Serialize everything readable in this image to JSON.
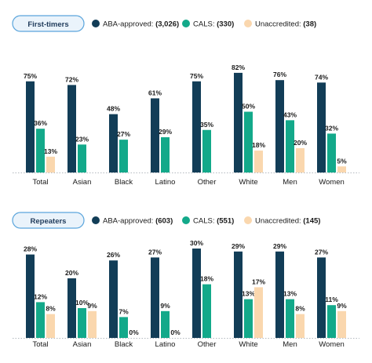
{
  "colors": {
    "aba": "#123d57",
    "cals": "#13a98a",
    "unaccredited": "#fad7ae",
    "pill_border": "#5aa5dc",
    "pill_fill": "#eaf3fb"
  },
  "chart_data": [
    {
      "type": "bar",
      "panel_label": "First-timers",
      "categories": [
        "Total",
        "Asian",
        "Black",
        "Latino",
        "Other",
        "White",
        "Men",
        "Women"
      ],
      "ylim": [
        0,
        100
      ],
      "legend": [
        {
          "name": "ABA-approved:",
          "count": "(3,026)",
          "color": "#123d57"
        },
        {
          "name": "CALS:",
          "count": "(330)",
          "color": "#13a98a"
        },
        {
          "name": "Unaccredited:",
          "count": "(38)",
          "color": "#fad7ae"
        }
      ],
      "series": [
        {
          "key": "aba",
          "values": [
            75,
            72,
            48,
            61,
            75,
            82,
            76,
            74
          ],
          "labels": [
            "75%",
            "72%",
            "48%",
            "61%",
            "75%",
            "82%",
            "76%",
            "74%"
          ]
        },
        {
          "key": "cals",
          "values": [
            36,
            23,
            27,
            29,
            35,
            50,
            43,
            32
          ],
          "labels": [
            "36%",
            "23%",
            "27%",
            "29%",
            "35%",
            "50%",
            "43%",
            "32%"
          ]
        },
        {
          "key": "unaccredited",
          "values": [
            13,
            null,
            null,
            null,
            null,
            18,
            20,
            5
          ],
          "labels": [
            "13%",
            "",
            "",
            "",
            "",
            "18%",
            "20%",
            "5%"
          ]
        }
      ]
    },
    {
      "type": "bar",
      "panel_label": "Repeaters",
      "categories": [
        "Total",
        "Asian",
        "Black",
        "Latino",
        "Other",
        "White",
        "Men",
        "Women"
      ],
      "ylim": [
        0,
        100
      ],
      "legend": [
        {
          "name": "ABA-approved:",
          "count": "(603)",
          "color": "#123d57"
        },
        {
          "name": "CALS:",
          "count": "(551)",
          "color": "#13a98a"
        },
        {
          "name": "Unaccredited:",
          "count": "(145)",
          "color": "#fad7ae"
        }
      ],
      "series": [
        {
          "key": "aba",
          "values": [
            28,
            20,
            26,
            27,
            30,
            29,
            29,
            27
          ],
          "labels": [
            "28%",
            "20%",
            "26%",
            "27%",
            "30%",
            "29%",
            "29%",
            "27%"
          ]
        },
        {
          "key": "cals",
          "values": [
            12,
            10,
            7,
            9,
            18,
            13,
            13,
            11
          ],
          "labels": [
            "12%",
            "10%",
            "7%",
            "9%",
            "18%",
            "13%",
            "13%",
            "11%"
          ]
        },
        {
          "key": "unaccredited",
          "values": [
            8,
            9,
            0,
            0,
            null,
            17,
            8,
            9
          ],
          "labels": [
            "8%",
            "9%",
            "0%",
            "0%",
            "",
            "17%",
            "8%",
            "9%"
          ]
        }
      ]
    }
  ]
}
